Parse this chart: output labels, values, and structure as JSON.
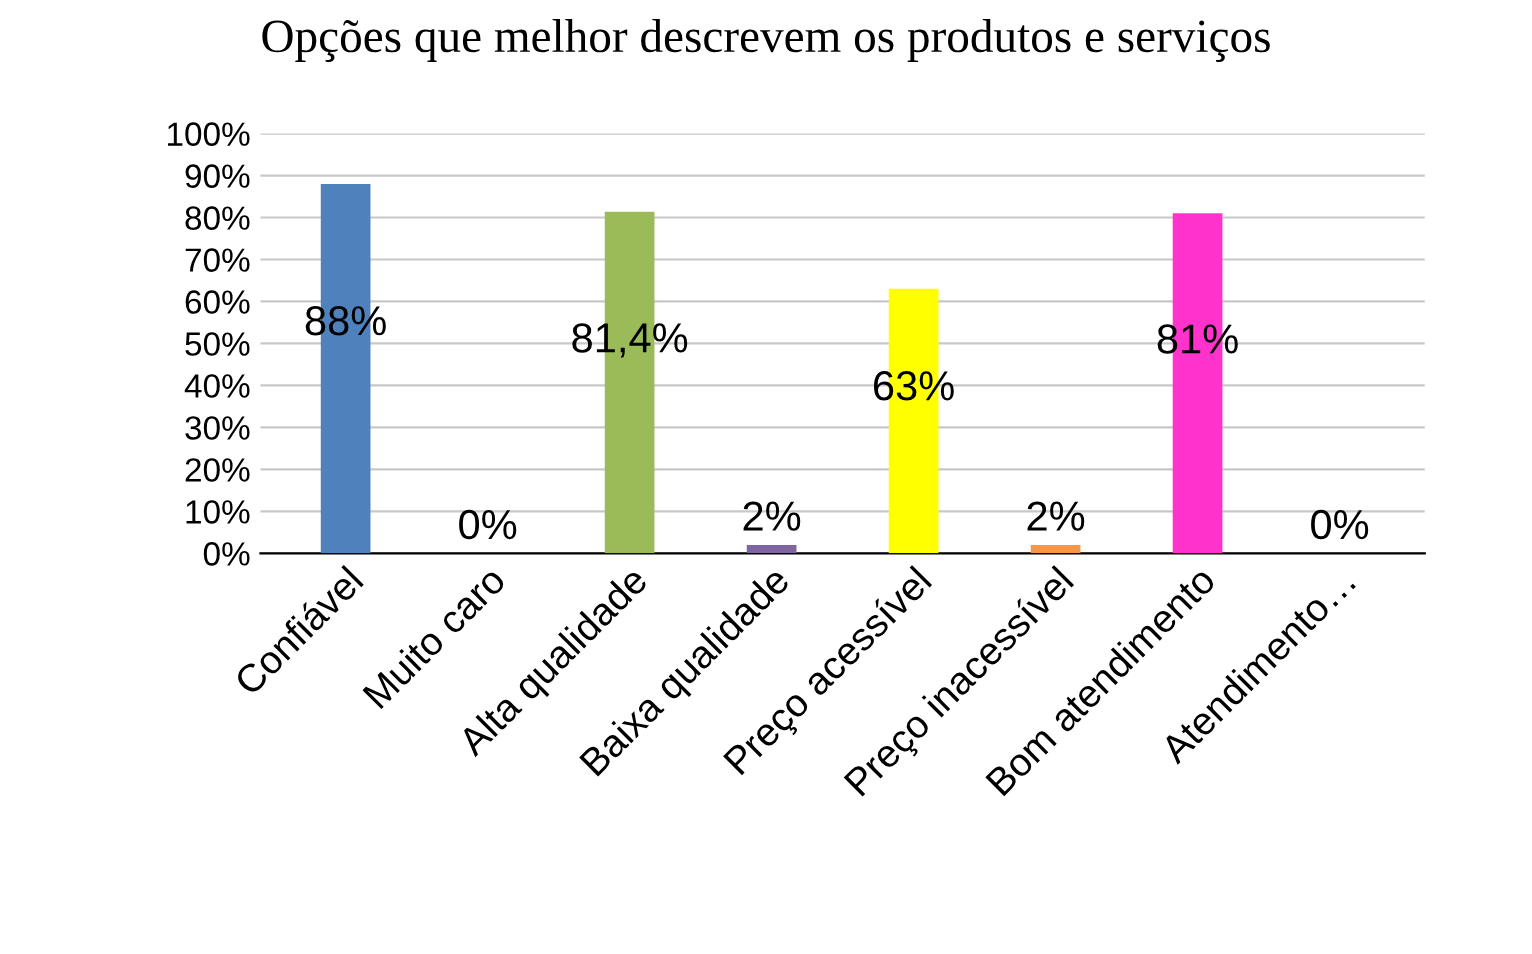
{
  "chart_data": {
    "type": "bar",
    "title": "Opções que melhor descrevem os produtos e serviços",
    "categories": [
      "Confiável",
      "Muito caro",
      "Alta qualidade",
      "Baixa qualidade",
      "Preço acessível",
      "Preço inacessível",
      "Bom atendimento",
      "Atendimento…"
    ],
    "values": [
      88,
      0,
      81.4,
      2,
      63,
      2,
      81,
      0
    ],
    "colors": [
      "#4f81bd",
      "#c0504d",
      "#9bbb59",
      "#8064a2",
      "#ffff00",
      "#f79646",
      "#ff33cc",
      "#cccc00"
    ],
    "value_labels": [
      "88%",
      "0%",
      "81,4%",
      "2%",
      "63%",
      "2%",
      "81%",
      "0%"
    ],
    "ylim": [
      0,
      100
    ],
    "yticks": [
      {
        "value": 0,
        "label": "0%"
      },
      {
        "value": 10,
        "label": "10%"
      },
      {
        "value": 20,
        "label": "20%"
      },
      {
        "value": 30,
        "label": "30%"
      },
      {
        "value": 40,
        "label": "40%"
      },
      {
        "value": 50,
        "label": "50%"
      },
      {
        "value": 60,
        "label": "60%"
      },
      {
        "value": 70,
        "label": "70%"
      },
      {
        "value": 80,
        "label": "80%"
      },
      {
        "value": 90,
        "label": "90%"
      },
      {
        "value": 100,
        "label": "100%"
      }
    ],
    "grid": "y"
  }
}
